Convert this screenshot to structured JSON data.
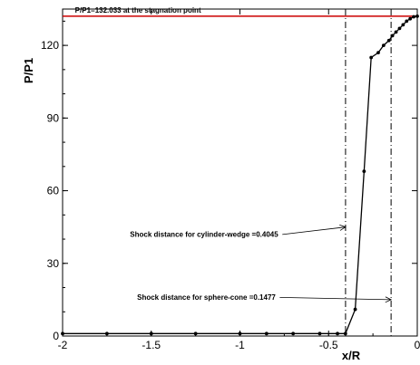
{
  "chart_data": {
    "type": "line",
    "xlabel": "x/R",
    "ylabel": "P/P1",
    "xlim": [
      -2,
      0
    ],
    "ylim": [
      0,
      135
    ],
    "x_ticks": [
      -2,
      -1.5,
      -1,
      -0.5,
      0
    ],
    "x_tick_labels": [
      "-2",
      "-1.5",
      "-1",
      "-0.5",
      "0"
    ],
    "y_ticks": [
      0,
      30,
      60,
      90,
      120
    ],
    "y_tick_labels": [
      "0",
      "30",
      "60",
      "90",
      "120"
    ],
    "grid": false,
    "series": [
      {
        "color": "#000000",
        "marker": "circle",
        "x": [
          -2.0,
          -1.75,
          -1.5,
          -1.25,
          -1.0,
          -0.85,
          -0.7,
          -0.55,
          -0.45,
          -0.405,
          -0.35,
          -0.3,
          -0.26,
          -0.22,
          -0.19,
          -0.16,
          -0.14,
          -0.12,
          -0.1,
          -0.08,
          -0.06,
          -0.04,
          -0.02,
          0.0
        ],
        "y": [
          1,
          1,
          1,
          1,
          1,
          1,
          1,
          1,
          1,
          1,
          11,
          68,
          115,
          117,
          120,
          122,
          124,
          125.5,
          127,
          128.5,
          130,
          131,
          131.8,
          132.033
        ]
      }
    ],
    "reference_lines": [
      {
        "orientation": "horizontal",
        "value": 132.033,
        "color": "#cc0000",
        "style": "solid"
      },
      {
        "orientation": "vertical",
        "value": -0.4045,
        "color": "#000000",
        "style": "dashdot"
      },
      {
        "orientation": "vertical",
        "value": -0.1477,
        "color": "#000000",
        "style": "dashdot"
      }
    ],
    "annotations": [
      {
        "text": "P/P1=132.033  at  the stagnation point",
        "anchor_x": -1.93,
        "anchor_y": 133.5
      },
      {
        "text": "Shock distance for cylinder-wedge =0.4045",
        "anchor_x": -1.62,
        "anchor_y": 41,
        "arrow_to_x": -0.4045,
        "arrow_to_y": 45
      },
      {
        "text": "Shock distance for sphere-cone =0.1477",
        "anchor_x": -1.58,
        "anchor_y": 15,
        "arrow_to_x": -0.1477,
        "arrow_to_y": 15
      }
    ]
  }
}
